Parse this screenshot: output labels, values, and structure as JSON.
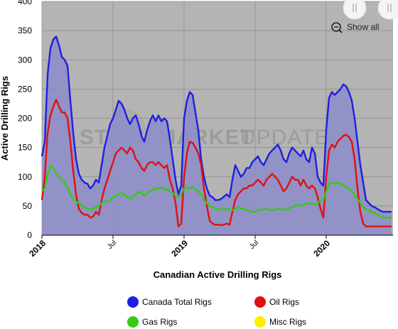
{
  "chart_data": {
    "type": "area",
    "title": "",
    "xlabel": "Canadian Active Drilling Rigs",
    "ylabel": "Active Drilling Rigs",
    "ylim": [
      0,
      400
    ],
    "yticks": [
      0,
      50,
      100,
      150,
      200,
      250,
      300,
      350,
      400
    ],
    "xticks": [
      {
        "label": "2018",
        "x": 2018.0,
        "major": true
      },
      {
        "label": "Jul",
        "x": 2018.5,
        "major": false
      },
      {
        "label": "2019",
        "x": 2019.0,
        "major": true
      },
      {
        "label": "Jul",
        "x": 2019.5,
        "major": false
      },
      {
        "label": "2020",
        "x": 2020.0,
        "major": true
      }
    ],
    "xlim": [
      2018.0,
      2020.47
    ],
    "grid": true,
    "legend_position": "bottom",
    "series": [
      {
        "name": "Canada Total Rigs",
        "color": "#1f1fe0",
        "x": [
          2018.0,
          2018.02,
          2018.04,
          2018.06,
          2018.08,
          2018.1,
          2018.12,
          2018.14,
          2018.16,
          2018.18,
          2018.2,
          2018.22,
          2018.24,
          2018.26,
          2018.28,
          2018.3,
          2018.32,
          2018.34,
          2018.36,
          2018.38,
          2018.4,
          2018.42,
          2018.44,
          2018.46,
          2018.48,
          2018.5,
          2018.52,
          2018.54,
          2018.56,
          2018.58,
          2018.6,
          2018.62,
          2018.64,
          2018.66,
          2018.68,
          2018.7,
          2018.72,
          2018.74,
          2018.76,
          2018.78,
          2018.8,
          2018.82,
          2018.84,
          2018.86,
          2018.88,
          2018.9,
          2018.92,
          2018.94,
          2018.96,
          2018.98,
          2019.0,
          2019.02,
          2019.04,
          2019.06,
          2019.08,
          2019.1,
          2019.12,
          2019.14,
          2019.16,
          2019.18,
          2019.2,
          2019.22,
          2019.24,
          2019.26,
          2019.28,
          2019.3,
          2019.32,
          2019.34,
          2019.36,
          2019.38,
          2019.4,
          2019.42,
          2019.44,
          2019.46,
          2019.48,
          2019.5,
          2019.52,
          2019.54,
          2019.56,
          2019.58,
          2019.6,
          2019.62,
          2019.64,
          2019.66,
          2019.68,
          2019.7,
          2019.72,
          2019.74,
          2019.76,
          2019.78,
          2019.8,
          2019.82,
          2019.84,
          2019.86,
          2019.88,
          2019.9,
          2019.92,
          2019.94,
          2019.96,
          2019.98,
          2020.0,
          2020.02,
          2020.04,
          2020.06,
          2020.08,
          2020.1,
          2020.12,
          2020.14,
          2020.16,
          2020.18,
          2020.2,
          2020.22,
          2020.24,
          2020.26,
          2020.28,
          2020.3,
          2020.32,
          2020.34,
          2020.36,
          2020.38,
          2020.4,
          2020.42,
          2020.44,
          2020.46
        ],
        "values": [
          135,
          160,
          275,
          320,
          335,
          340,
          325,
          305,
          300,
          290,
          230,
          175,
          130,
          105,
          95,
          90,
          88,
          80,
          85,
          95,
          90,
          120,
          150,
          170,
          190,
          200,
          215,
          230,
          225,
          215,
          200,
          190,
          200,
          205,
          190,
          170,
          160,
          180,
          195,
          205,
          195,
          205,
          195,
          200,
          195,
          165,
          130,
          95,
          70,
          85,
          200,
          230,
          245,
          240,
          210,
          180,
          130,
          100,
          80,
          68,
          65,
          60,
          60,
          62,
          66,
          70,
          65,
          95,
          120,
          110,
          100,
          105,
          115,
          115,
          125,
          130,
          135,
          125,
          120,
          130,
          140,
          145,
          150,
          155,
          145,
          130,
          125,
          140,
          150,
          145,
          140,
          135,
          145,
          130,
          125,
          150,
          140,
          100,
          90,
          85,
          180,
          235,
          245,
          240,
          245,
          250,
          258,
          255,
          245,
          230,
          200,
          160,
          120,
          90,
          60,
          55,
          50,
          48,
          45,
          42,
          40,
          40,
          40,
          40
        ],
        "fill": true
      },
      {
        "name": "Oil Rigs",
        "color": "#e01010",
        "x": [
          2018.0,
          2018.02,
          2018.04,
          2018.06,
          2018.08,
          2018.1,
          2018.12,
          2018.14,
          2018.16,
          2018.18,
          2018.2,
          2018.22,
          2018.24,
          2018.26,
          2018.28,
          2018.3,
          2018.32,
          2018.34,
          2018.36,
          2018.38,
          2018.4,
          2018.42,
          2018.44,
          2018.46,
          2018.48,
          2018.5,
          2018.52,
          2018.54,
          2018.56,
          2018.58,
          2018.6,
          2018.62,
          2018.64,
          2018.66,
          2018.68,
          2018.7,
          2018.72,
          2018.74,
          2018.76,
          2018.78,
          2018.8,
          2018.82,
          2018.84,
          2018.86,
          2018.88,
          2018.9,
          2018.92,
          2018.94,
          2018.96,
          2018.98,
          2019.0,
          2019.02,
          2019.04,
          2019.06,
          2019.08,
          2019.1,
          2019.12,
          2019.14,
          2019.16,
          2019.18,
          2019.2,
          2019.22,
          2019.24,
          2019.26,
          2019.28,
          2019.3,
          2019.32,
          2019.34,
          2019.36,
          2019.38,
          2019.4,
          2019.42,
          2019.44,
          2019.46,
          2019.48,
          2019.5,
          2019.52,
          2019.54,
          2019.56,
          2019.58,
          2019.6,
          2019.62,
          2019.64,
          2019.66,
          2019.68,
          2019.7,
          2019.72,
          2019.74,
          2019.76,
          2019.78,
          2019.8,
          2019.82,
          2019.84,
          2019.86,
          2019.88,
          2019.9,
          2019.92,
          2019.94,
          2019.96,
          2019.98,
          2020.0,
          2020.02,
          2020.04,
          2020.06,
          2020.08,
          2020.1,
          2020.12,
          2020.14,
          2020.16,
          2020.18,
          2020.2,
          2020.22,
          2020.24,
          2020.26,
          2020.28,
          2020.3,
          2020.32,
          2020.34,
          2020.36,
          2020.38,
          2020.4,
          2020.42,
          2020.44,
          2020.46
        ],
        "values": [
          60,
          100,
          175,
          205,
          220,
          232,
          220,
          210,
          210,
          200,
          160,
          110,
          70,
          45,
          38,
          35,
          35,
          30,
          32,
          40,
          35,
          60,
          80,
          95,
          110,
          125,
          140,
          145,
          150,
          145,
          140,
          150,
          145,
          130,
          125,
          115,
          110,
          120,
          125,
          125,
          120,
          125,
          120,
          115,
          120,
          95,
          80,
          55,
          15,
          20,
          100,
          140,
          160,
          158,
          150,
          140,
          120,
          80,
          50,
          25,
          20,
          18,
          18,
          17,
          18,
          20,
          18,
          40,
          60,
          70,
          75,
          80,
          80,
          85,
          85,
          90,
          95,
          90,
          85,
          95,
          100,
          105,
          100,
          95,
          85,
          75,
          80,
          90,
          100,
          95,
          95,
          85,
          95,
          85,
          80,
          85,
          80,
          65,
          45,
          30,
          100,
          145,
          155,
          150,
          160,
          165,
          170,
          172,
          168,
          160,
          130,
          80,
          40,
          20,
          15,
          15,
          15,
          15,
          15,
          15,
          15,
          15,
          15,
          15
        ],
        "fill": false
      },
      {
        "name": "Gas Rigs",
        "color": "#33cc10",
        "x": [
          2018.0,
          2018.02,
          2018.04,
          2018.06,
          2018.08,
          2018.1,
          2018.12,
          2018.14,
          2018.16,
          2018.18,
          2018.2,
          2018.22,
          2018.24,
          2018.26,
          2018.28,
          2018.3,
          2018.32,
          2018.34,
          2018.36,
          2018.38,
          2018.4,
          2018.42,
          2018.44,
          2018.46,
          2018.48,
          2018.5,
          2018.52,
          2018.54,
          2018.56,
          2018.58,
          2018.6,
          2018.62,
          2018.64,
          2018.66,
          2018.68,
          2018.7,
          2018.72,
          2018.74,
          2018.76,
          2018.78,
          2018.8,
          2018.82,
          2018.84,
          2018.86,
          2018.88,
          2018.9,
          2018.92,
          2018.94,
          2018.96,
          2018.98,
          2019.0,
          2019.02,
          2019.04,
          2019.06,
          2019.08,
          2019.1,
          2019.12,
          2019.14,
          2019.16,
          2019.18,
          2019.2,
          2019.22,
          2019.24,
          2019.26,
          2019.28,
          2019.3,
          2019.32,
          2019.34,
          2019.36,
          2019.38,
          2019.4,
          2019.42,
          2019.44,
          2019.46,
          2019.48,
          2019.5,
          2019.52,
          2019.54,
          2019.56,
          2019.58,
          2019.6,
          2019.62,
          2019.64,
          2019.66,
          2019.68,
          2019.7,
          2019.72,
          2019.74,
          2019.76,
          2019.78,
          2019.8,
          2019.82,
          2019.84,
          2019.86,
          2019.88,
          2019.9,
          2019.92,
          2019.94,
          2019.96,
          2019.98,
          2020.0,
          2020.02,
          2020.04,
          2020.06,
          2020.08,
          2020.1,
          2020.12,
          2020.14,
          2020.16,
          2020.18,
          2020.2,
          2020.22,
          2020.24,
          2020.26,
          2020.28,
          2020.3,
          2020.32,
          2020.34,
          2020.36,
          2020.38,
          2020.4,
          2020.42,
          2020.44,
          2020.46
        ],
        "values": [
          75,
          80,
          105,
          118,
          115,
          105,
          100,
          95,
          90,
          80,
          70,
          62,
          58,
          55,
          50,
          47,
          45,
          44,
          45,
          48,
          50,
          55,
          58,
          57,
          60,
          65,
          68,
          70,
          72,
          70,
          65,
          62,
          65,
          70,
          75,
          72,
          68,
          72,
          75,
          78,
          80,
          80,
          82,
          80,
          78,
          75,
          72,
          68,
          65,
          70,
          80,
          82,
          80,
          82,
          78,
          75,
          70,
          60,
          55,
          50,
          48,
          45,
          44,
          45,
          44,
          45,
          44,
          43,
          45,
          48,
          46,
          45,
          43,
          42,
          40,
          40,
          42,
          43,
          44,
          45,
          44,
          42,
          44,
          45,
          44,
          43,
          45,
          46,
          48,
          50,
          52,
          50,
          52,
          54,
          55,
          54,
          52,
          55,
          60,
          60,
          75,
          88,
          90,
          88,
          90,
          88,
          86,
          82,
          80,
          75,
          70,
          62,
          55,
          48,
          45,
          42,
          40,
          38,
          35,
          32,
          30,
          30,
          30,
          30
        ],
        "fill": false
      },
      {
        "name": "Misc Rigs",
        "color": "#ffee00",
        "x": [],
        "values": [],
        "fill": false
      }
    ]
  },
  "watermark": {
    "brand_bold": "STEEL MARKET",
    "brand_light": "UPDATE"
  },
  "controls": {
    "show_all_label": "Show all"
  },
  "colors": {
    "plot_bg": "#b4b4b4",
    "area_fill": "#8e8ec8",
    "grid": "#8a8a8a"
  }
}
